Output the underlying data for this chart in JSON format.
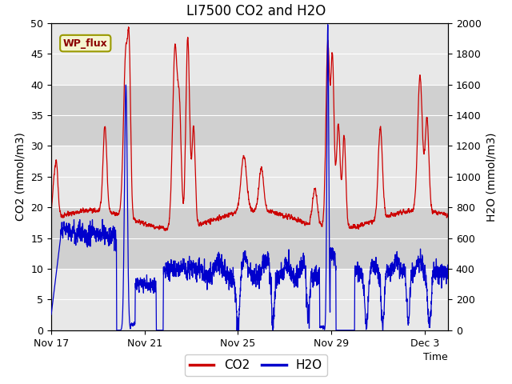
{
  "title": "LI7500 CO2 and H2O",
  "xlabel": "Time",
  "ylabel_left": "CO2 (mmol/m3)",
  "ylabel_right": "H2O (mmol/m3)",
  "ylim_left": [
    0,
    50
  ],
  "ylim_right": [
    0,
    2000
  ],
  "yticks_left": [
    0,
    5,
    10,
    15,
    20,
    25,
    30,
    35,
    40,
    45,
    50
  ],
  "yticks_right": [
    0,
    200,
    400,
    600,
    800,
    1000,
    1200,
    1400,
    1600,
    1800,
    2000
  ],
  "xtick_labels": [
    "Nov 17",
    "Nov 21",
    "Nov 25",
    "Nov 29",
    "Dec 3"
  ],
  "xtick_positions": [
    0,
    4,
    8,
    12,
    16
  ],
  "xlim": [
    0,
    17
  ],
  "co2_color": "#cc0000",
  "h2o_color": "#0000cc",
  "legend_co2_label": "CO2",
  "legend_h2o_label": "H2O",
  "annotation_text": "WP_flux",
  "light_band_color": "#e8e8e8",
  "dark_band_color": "#d0d0d0",
  "plot_bg_color": "#e0e0e0",
  "grid_color": "#ffffff",
  "title_fontsize": 12,
  "axis_label_fontsize": 10,
  "tick_fontsize": 9,
  "legend_fontsize": 11
}
